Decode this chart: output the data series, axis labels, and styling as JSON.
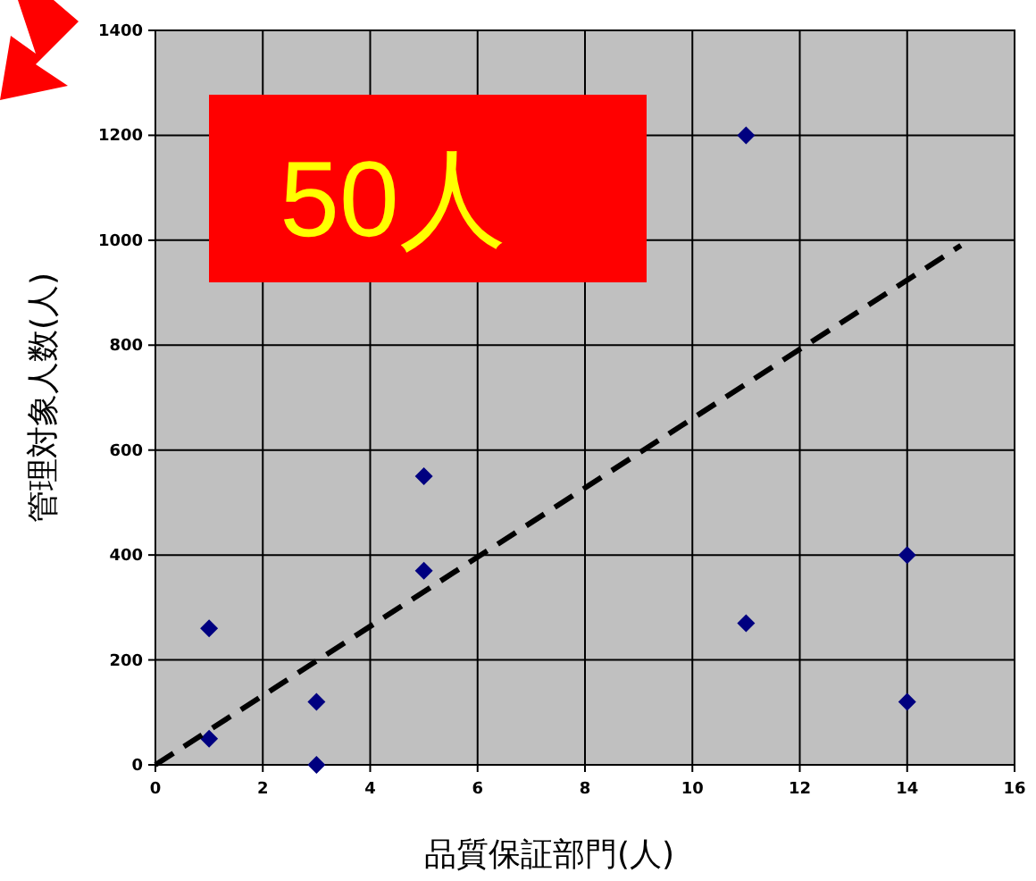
{
  "chart_data": {
    "type": "scatter",
    "xlabel": "品質保証部門(人)",
    "ylabel": "管理対象人数(人)",
    "annotations": [
      "50人"
    ],
    "xlim": [
      0,
      16
    ],
    "xticks": [
      0,
      2,
      4,
      6,
      8,
      10,
      12,
      14,
      16
    ],
    "ylim": [
      0,
      1400
    ],
    "yticks": [
      0,
      200,
      400,
      600,
      800,
      1000,
      1200,
      1400
    ],
    "grid": true,
    "marker": "diamond",
    "series": [
      {
        "color": "#000080",
        "x": [
          1,
          1,
          3,
          3,
          5,
          5,
          11,
          11,
          14,
          14
        ],
        "values": [
          260,
          50,
          120,
          0,
          550,
          370,
          1200,
          270,
          400,
          120
        ]
      },
      {
        "type": "line",
        "color": "#000000",
        "line_style": "dashed",
        "marker": "none",
        "x": [
          0,
          15
        ],
        "values": [
          0,
          990
        ]
      }
    ]
  }
}
